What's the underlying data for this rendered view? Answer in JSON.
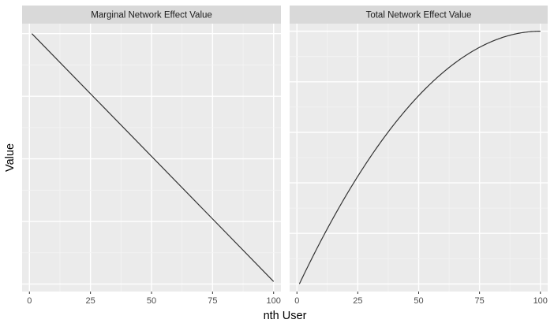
{
  "chart_data": {
    "type": "line",
    "xlabel": "nth User",
    "ylabel": "Value",
    "x_ticks": [
      0,
      25,
      50,
      75,
      100
    ],
    "xlim": [
      -3,
      103
    ],
    "panels": [
      {
        "title": "Marginal Network Effect Value",
        "series": [
          {
            "x": [
              1,
              100
            ],
            "y": [
              100,
              1
            ]
          }
        ],
        "ylim": [
          -3,
          104
        ]
      },
      {
        "title": "Total Network Effect Value",
        "series": [
          {
            "x": [
              1,
              100
            ],
            "formula": "(n-1)*(199-n)/9801",
            "color": "#333333"
          }
        ],
        "ylim": [
          -0.03,
          1.03
        ]
      }
    ],
    "grid": true,
    "legend": "none",
    "colors": {
      "panel_background": "#ebebeb",
      "strip_background": "#d9d9d9",
      "grid_major": "#ffffff",
      "grid_minor": "#f4f4f4",
      "line": "#333333"
    }
  }
}
